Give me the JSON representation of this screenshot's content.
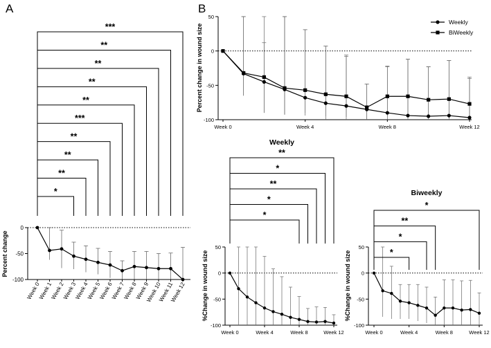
{
  "panel_labels": {
    "a": "A",
    "b": "B"
  },
  "chart_data": [
    {
      "id": "A",
      "type": "line",
      "title": "",
      "xlabel": "",
      "ylabel": "Percent change",
      "ylim": [
        -100,
        0
      ],
      "yticks": [
        "0",
        "-50",
        "-100"
      ],
      "categories": [
        "Week 0",
        "Week 1",
        "Week 2",
        "Week 3",
        "Week 4",
        "Week 5",
        "Week 6",
        "Week 7",
        "Week 8",
        "Week 9",
        "Week 10",
        "Week 11",
        "Week 12"
      ],
      "series": [
        {
          "name": "Percent change",
          "values": [
            0,
            -44,
            -41,
            -55,
            -61,
            -67,
            -72,
            -83,
            -75,
            -77,
            -79,
            -79,
            -100
          ],
          "error_upper": [
            0,
            0,
            -5,
            -28,
            -35,
            -40,
            -46,
            -64,
            -46,
            -46,
            -50,
            -49,
            -38
          ],
          "error_lower": [
            0,
            -62,
            -78,
            -80,
            -86,
            -90,
            -97,
            -100,
            -100,
            -100,
            -100,
            -100,
            -100
          ]
        }
      ],
      "significance": [
        {
          "to": "Week 3",
          "label": "*"
        },
        {
          "to": "Week 4",
          "label": "**"
        },
        {
          "to": "Week 5",
          "label": "**"
        },
        {
          "to": "Week 6",
          "label": "**"
        },
        {
          "to": "Week 7",
          "label": "***"
        },
        {
          "to": "Week 8",
          "label": "**"
        },
        {
          "to": "Week 9",
          "label": "**"
        },
        {
          "to": "Week 10",
          "label": "**"
        },
        {
          "to": "Week 11",
          "label": "**"
        },
        {
          "to": "Week 12",
          "label": "***"
        }
      ]
    },
    {
      "id": "B-top",
      "type": "line",
      "title": "",
      "xlabel": "",
      "ylabel": "Percent change in wound size",
      "ylim": [
        -100,
        50
      ],
      "yticks": [
        "50",
        "0",
        "-50",
        "-100"
      ],
      "xticks": [
        "Week 0",
        "Week 4",
        "Week 8",
        "Week 12"
      ],
      "legend": "top-right",
      "series": [
        {
          "name": "Weekly",
          "x": [
            0,
            1,
            2,
            3,
            4,
            5,
            6,
            7,
            8,
            9,
            10,
            11,
            12
          ],
          "values": [
            0,
            -33,
            -45,
            -56,
            -68,
            -76,
            -80,
            -85,
            -90,
            -94,
            -95,
            -94,
            -97
          ],
          "error_upper": [
            0,
            50,
            50,
            50,
            31,
            7,
            -6,
            -48,
            -23,
            -12,
            -23,
            -14,
            -40
          ],
          "error_lower": [
            0,
            -65,
            -90,
            -93,
            -94,
            -100,
            -100,
            -100,
            -100,
            -100,
            -100,
            -100,
            -100
          ]
        },
        {
          "name": "BiWeekly",
          "x": [
            0,
            1,
            2,
            3,
            4,
            5,
            6,
            7,
            8,
            9,
            10,
            11,
            12
          ],
          "values": [
            0,
            -32,
            -38,
            -54,
            -57,
            -63,
            -66,
            -82,
            -66,
            -66,
            -71,
            -70,
            -77
          ],
          "error_upper": [
            0,
            50,
            12,
            50,
            31,
            7,
            -8,
            -48,
            -22,
            -12,
            -23,
            -14,
            -38
          ],
          "error_lower": [
            0,
            -65,
            -90,
            -92,
            -90,
            -95,
            -96,
            -100,
            -95,
            -95,
            -98,
            -98,
            -100
          ]
        }
      ]
    },
    {
      "id": "B-weekly",
      "type": "line",
      "title": "Weekly",
      "xlabel": "",
      "ylabel": "%Change in wound size",
      "ylim": [
        -100,
        50
      ],
      "yticks": [
        "50",
        "0",
        "-50",
        "-100"
      ],
      "xticks": [
        "Week 0",
        "Week 4",
        "Week 8",
        "Week 12"
      ],
      "series": [
        {
          "name": "Weekly",
          "x": [
            0,
            1,
            2,
            3,
            4,
            5,
            6,
            7,
            8,
            9,
            10,
            11,
            12
          ],
          "values": [
            0,
            -30,
            -46,
            -57,
            -67,
            -74,
            -79,
            -85,
            -89,
            -93,
            -94,
            -93,
            -96
          ],
          "error_upper": [
            0,
            50,
            50,
            50,
            32,
            8,
            -7,
            -27,
            -45,
            -68,
            -65,
            -66,
            -80
          ],
          "error_lower": [
            0,
            -100,
            -100,
            -100,
            -100,
            -100,
            -100,
            -100,
            -100,
            -100,
            -100,
            -100,
            -100
          ]
        }
      ],
      "significance": [
        {
          "to": "Week 8",
          "label": "*"
        },
        {
          "to": "Week 9",
          "label": "*"
        },
        {
          "to": "Week 10",
          "label": "**"
        },
        {
          "to": "Week 11",
          "label": "*"
        },
        {
          "to": "Week 12",
          "label": "**"
        }
      ]
    },
    {
      "id": "B-biweekly",
      "type": "line",
      "title": "Biweekly",
      "xlabel": "",
      "ylabel": "%Change in wound size",
      "ylim": [
        -100,
        50
      ],
      "yticks": [
        "50",
        "0",
        "-50",
        "-100"
      ],
      "xticks": [
        "Week 0",
        "Week 4",
        "Week 8",
        "Week 12"
      ],
      "series": [
        {
          "name": "Biweekly",
          "x": [
            0,
            1,
            2,
            3,
            4,
            5,
            6,
            7,
            8,
            9,
            10,
            11,
            12
          ],
          "values": [
            0,
            -34,
            -39,
            -54,
            -57,
            -62,
            -67,
            -81,
            -67,
            -67,
            -71,
            -70,
            -77
          ],
          "error_upper": [
            0,
            50,
            13,
            -22,
            -22,
            -22,
            -27,
            -46,
            -13,
            -13,
            -15,
            -14,
            -38
          ],
          "error_lower": [
            0,
            -84,
            -88,
            -88,
            -88,
            -92,
            -96,
            -100,
            -100,
            -100,
            -100,
            -100,
            -100
          ]
        }
      ],
      "significance": [
        {
          "to": "Week 4",
          "label": "*"
        },
        {
          "to": "Week 6",
          "label": "*"
        },
        {
          "to": "Week 7",
          "label": "**"
        },
        {
          "to": "Week 12",
          "label": "*"
        }
      ]
    }
  ]
}
